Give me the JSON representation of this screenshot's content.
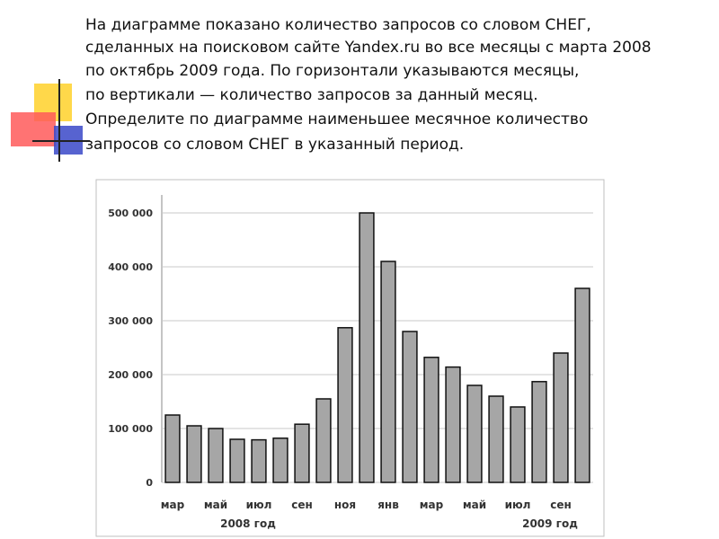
{
  "chart_data": {
    "type": "bar",
    "text_lines": [
      "На диаграмме показано количество запросов со словом СНЕГ,",
      "сделанных на поисковом сайте Yandex.ru во все месяцы с марта 2008",
      " по октябрь 2009 года. По горизонтали указываются месяцы,",
      "по вертикали — количество запросов за данный месяц.",
      "Определите по диаграмме наименьшее месячное количество",
      "запросов со словом СНЕГ в указанный период."
    ],
    "categories": [
      "мар",
      null,
      "май",
      null,
      "июл",
      null,
      "сен",
      null,
      "ноя",
      null,
      "янв",
      null,
      "мар",
      null,
      "май",
      null,
      "июл",
      null,
      "сен",
      null
    ],
    "values": [
      125000,
      105000,
      100000,
      80000,
      79000,
      82000,
      108000,
      155000,
      287000,
      500000,
      410000,
      280000,
      232000,
      214000,
      180000,
      160000,
      140000,
      187000,
      240000,
      360000
    ],
    "color": "#a6a6a6",
    "year_labels": [
      "2008 год",
      "2009 год"
    ],
    "ylim": [
      0,
      500000
    ],
    "yticks": [
      0,
      {
        "value": 100000,
        "label": "100 000"
      },
      {
        "value": 200000,
        "label": "200 000"
      },
      {
        "value": 300000,
        "label": "300 000"
      },
      {
        "value": 400000,
        "label": "400 000"
      },
      {
        "value": 500000,
        "label": "500 000"
      }
    ],
    "grid": true
  }
}
